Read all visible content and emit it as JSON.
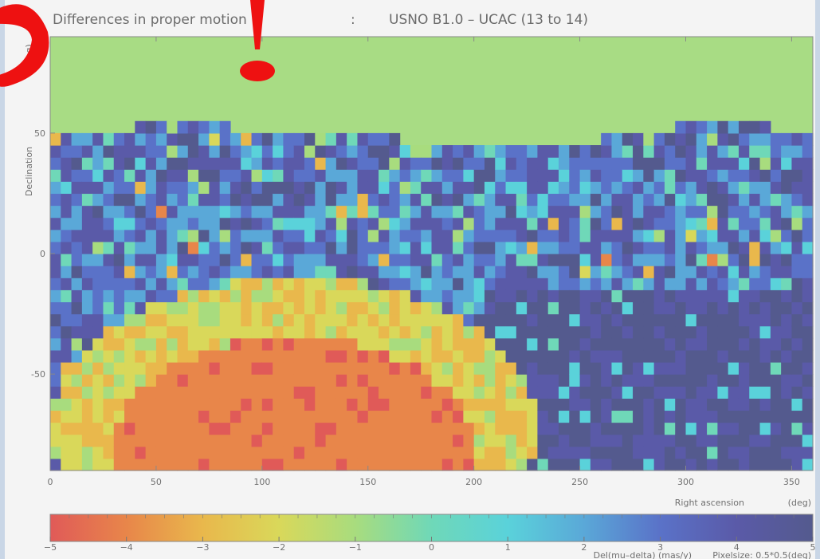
{
  "chart_data": {
    "type": "heatmap",
    "title": "Differences in proper motion",
    "title_separator": ":",
    "subtitle": "USNO B1.0 – UCAC (13 to 14)",
    "xlabel": "Right ascension",
    "xunit": "(deg)",
    "ylabel": "Declination",
    "yunit": "(deg)",
    "xlim": [
      0,
      360
    ],
    "ylim": [
      -90,
      90
    ],
    "xticks": [
      0,
      50,
      100,
      150,
      200,
      250,
      300,
      350
    ],
    "yticks": [
      -50,
      0,
      50
    ],
    "grid": false,
    "colorbar": {
      "ticks": [
        -5,
        -4,
        -3,
        -2,
        -1,
        0,
        1,
        2,
        3,
        4,
        5
      ],
      "range": [
        -5,
        5
      ],
      "label": "Del(mu–delta)  (mas/y)",
      "pixelsize_label": "Pixelsize: 0.5*0.5(deg)",
      "colors": [
        "#e05a58",
        "#e8864a",
        "#e9b84c",
        "#d9d85a",
        "#a8dc7e",
        "#6fd8b8",
        "#5ad2da",
        "#5aa8d8",
        "#5a72c8",
        "#5a5aa8",
        "#545a8e"
      ]
    },
    "no_data_color": "#a8dc84",
    "regions": [
      {
        "ra": [
          0,
          360
        ],
        "dec": [
          50,
          90
        ],
        "value": null
      },
      {
        "ra": [
          40,
          200
        ],
        "dec": [
          -90,
          -40
        ],
        "value": -4.5
      },
      {
        "ra": [
          20,
          230
        ],
        "dec": [
          -45,
          -20
        ],
        "value": -2.5
      },
      {
        "ra": [
          0,
          360
        ],
        "dec": [
          -20,
          50
        ],
        "value": 3.5
      },
      {
        "ra": [
          200,
          360
        ],
        "dec": [
          -90,
          -20
        ],
        "value": 4.8
      }
    ]
  },
  "annotation": {
    "color": "#ee1111",
    "shapes": [
      "red-arc",
      "red-exclamation"
    ]
  }
}
